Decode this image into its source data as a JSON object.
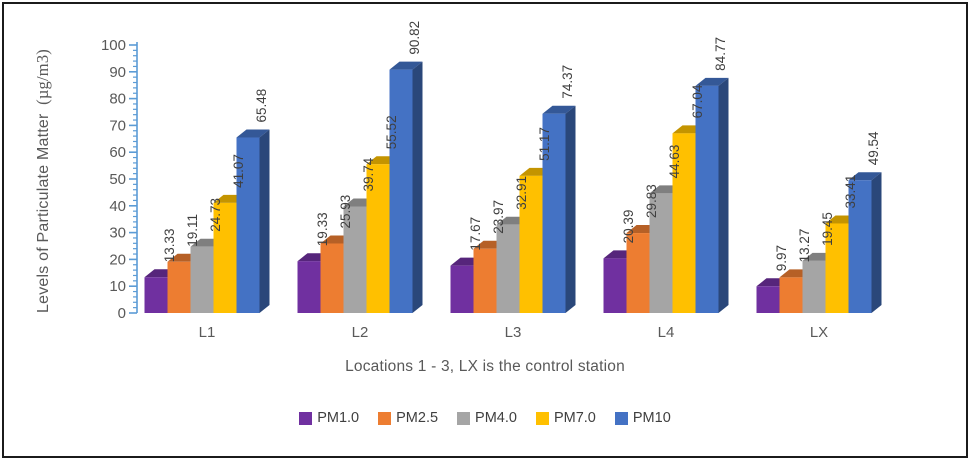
{
  "chart_data": {
    "type": "bar",
    "bar_style": "3d-clustered",
    "title": "",
    "xlabel": "Locations 1 - 3, LX is the control station",
    "ylabel": "Levels of Particulate Matter (µg/m3)",
    "ylabel_main": "Levels of Particulate Matter",
    "ylabel_unit": "(µg/m3)",
    "categories": [
      "L1",
      "L2",
      "L3",
      "L4",
      "LX"
    ],
    "series": [
      {
        "name": "PM1.0",
        "color": "#7030A0",
        "values": [
          13.33,
          19.33,
          17.67,
          20.39,
          9.97
        ]
      },
      {
        "name": "PM2.5",
        "color": "#ED7D31",
        "values": [
          19.11,
          25.93,
          23.97,
          29.83,
          13.27
        ]
      },
      {
        "name": "PM4.0",
        "color": "#A5A5A5",
        "values": [
          24.73,
          39.74,
          32.91,
          44.63,
          19.45
        ]
      },
      {
        "name": "PM7.0",
        "color": "#FFC000",
        "values": [
          41.07,
          55.52,
          51.17,
          67.04,
          33.41
        ]
      },
      {
        "name": "PM10",
        "color": "#4472C4",
        "values": [
          65.48,
          90.82,
          74.37,
          84.77,
          49.54
        ]
      }
    ],
    "ylim": [
      0,
      100
    ],
    "ytick_step": 10,
    "yticks": [
      0,
      10,
      20,
      30,
      40,
      50,
      60,
      70,
      80,
      90,
      100
    ],
    "minor_tick_step": 2,
    "grid": false,
    "legend_position": "bottom",
    "axis_color": "#5B9BD5",
    "tick_label_color": "#595959",
    "value_label_color": "#3f3f3f",
    "value_label_decimals": 2
  }
}
